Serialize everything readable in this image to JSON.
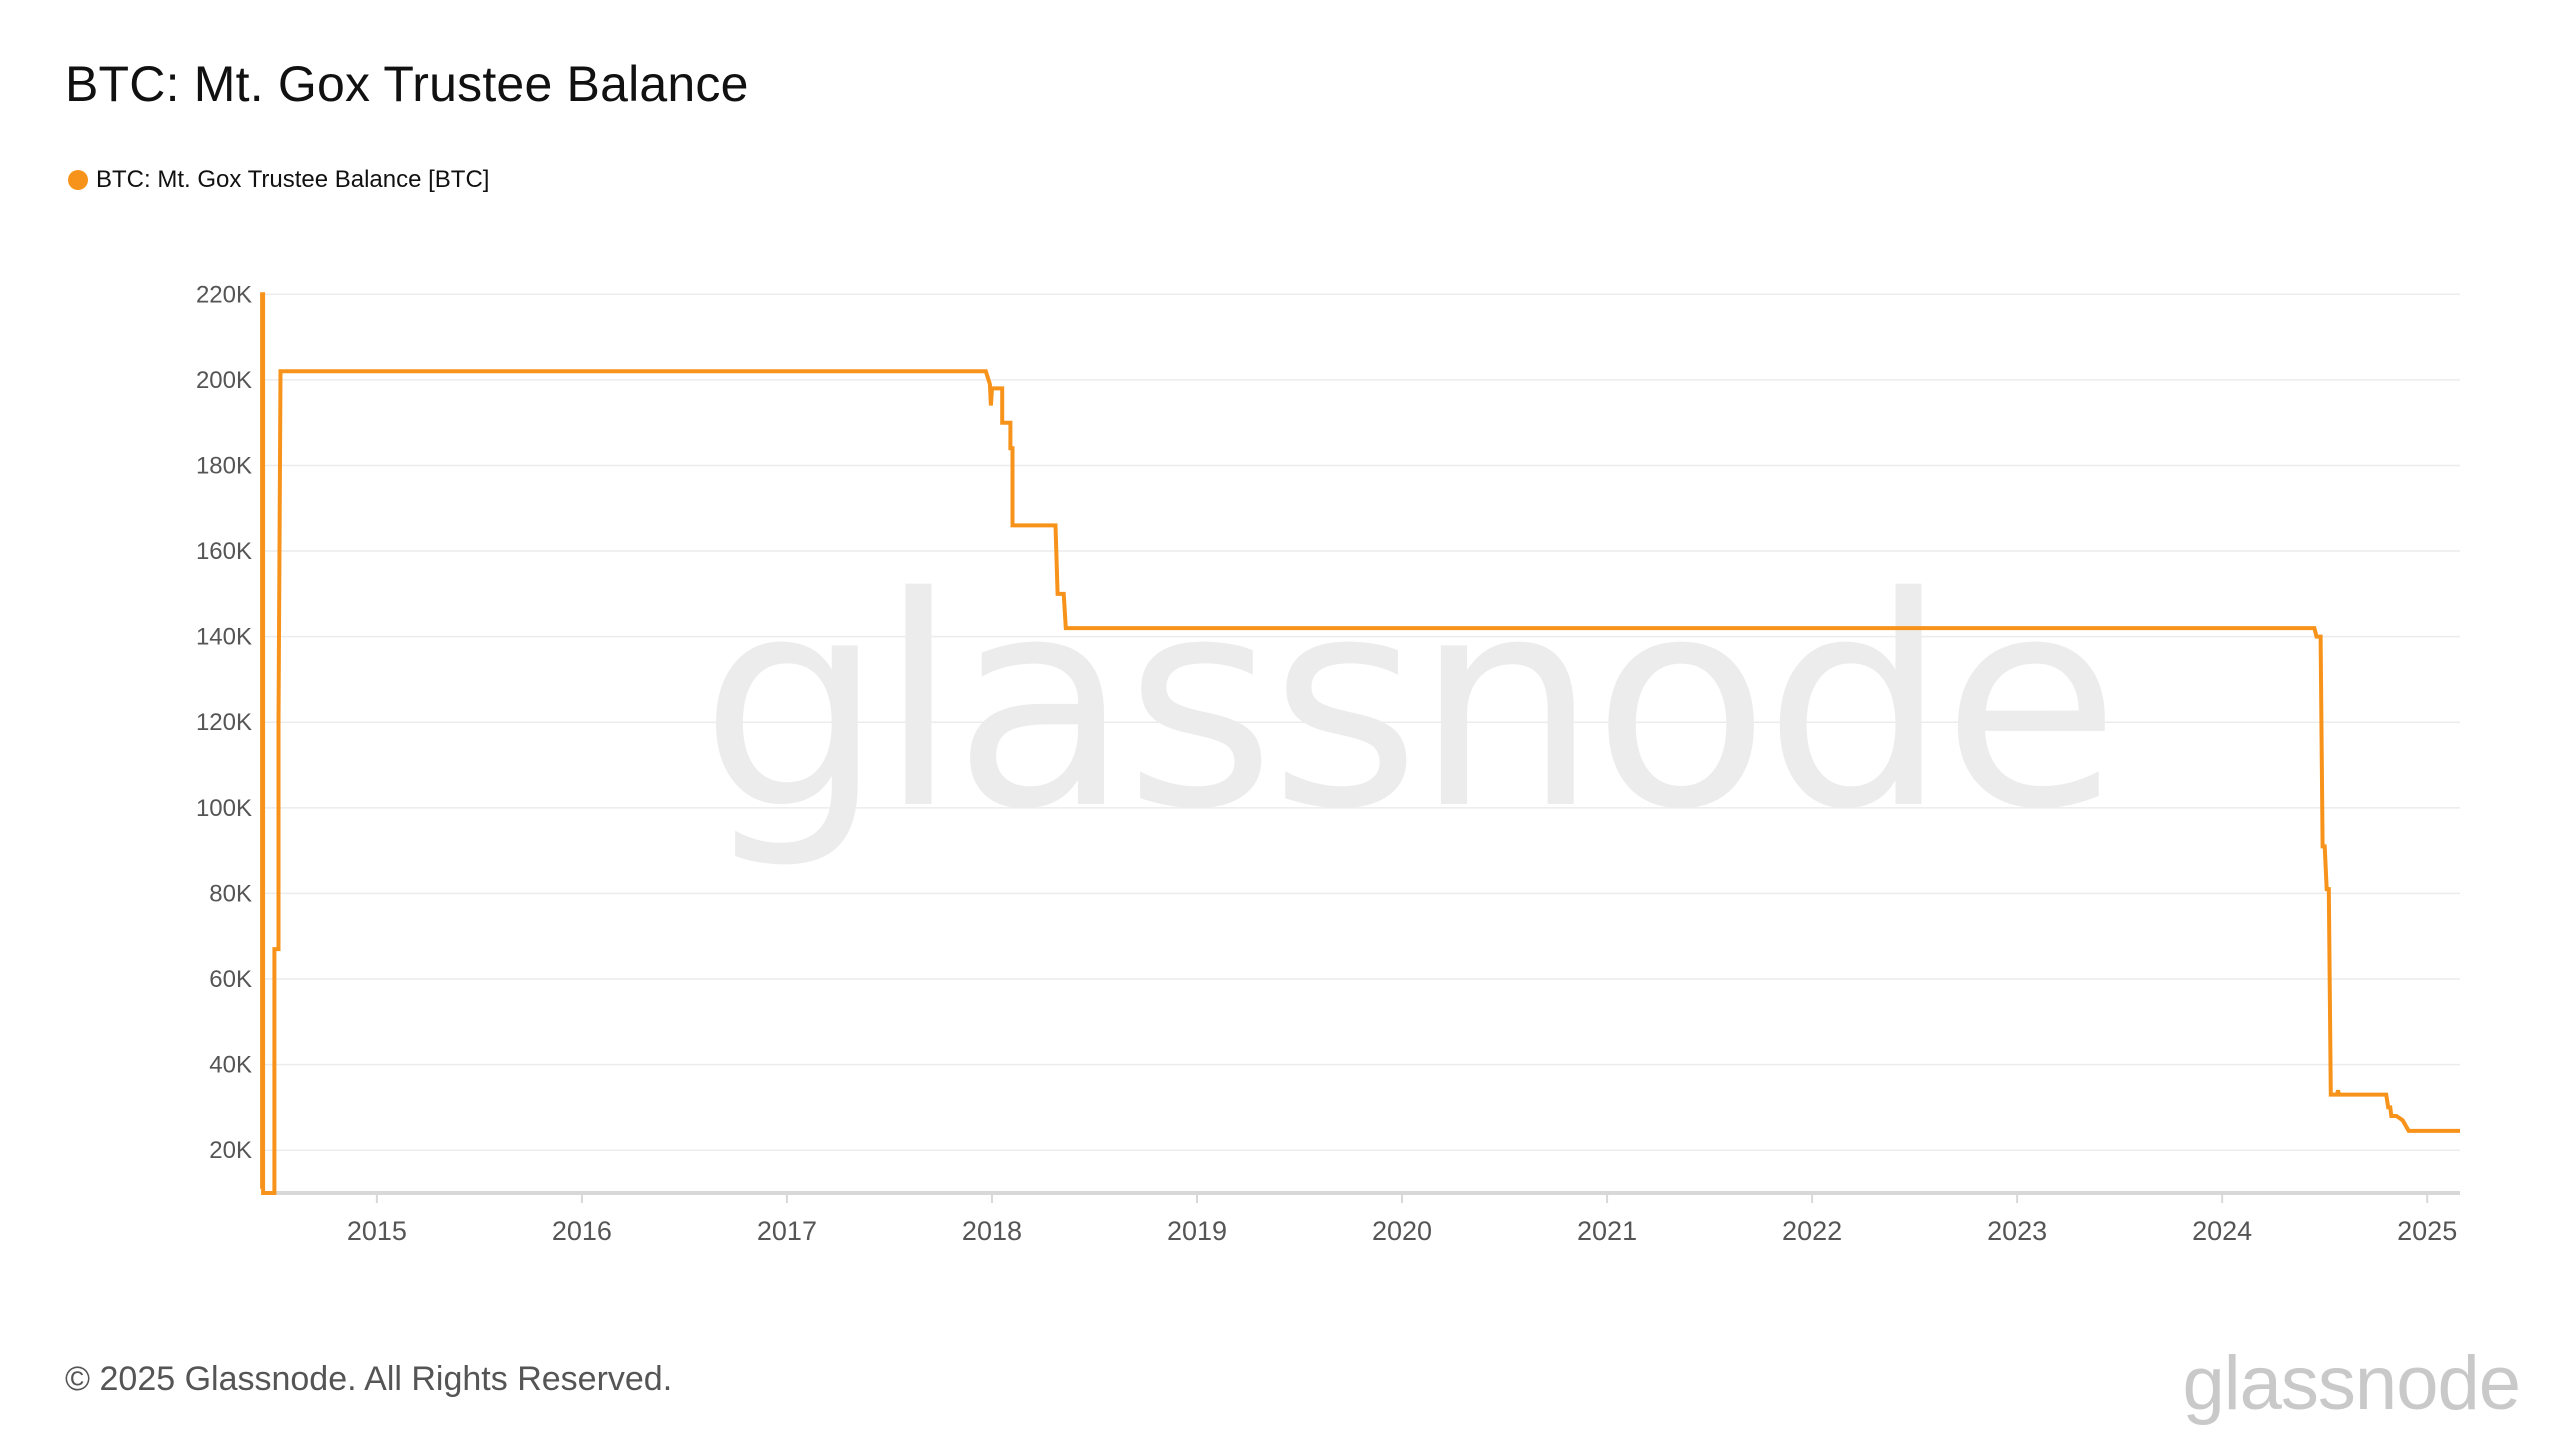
{
  "colors": {
    "series": "#f7931a",
    "grid": "#ececec",
    "axis": "#d8d8d8",
    "tick_text": "#555555"
  },
  "watermark": "glassnode",
  "footer": {
    "copyright": "© 2025 Glassnode. All Rights Reserved.",
    "logo": "glassnode"
  },
  "chart_data": {
    "type": "line",
    "title": "BTC: Mt. Gox Trustee Balance",
    "xlabel": "",
    "ylabel": "",
    "legend": {
      "placement": "top-left",
      "entries": [
        "BTC: Mt. Gox Trustee Balance [BTC]"
      ]
    },
    "grid": true,
    "ylim": [
      10000,
      221000
    ],
    "xlim": [
      2014.43,
      2025.16
    ],
    "y_ticks": [
      20000,
      40000,
      60000,
      80000,
      100000,
      120000,
      140000,
      160000,
      180000,
      200000,
      220000
    ],
    "y_tick_labels": [
      "20K",
      "40K",
      "60K",
      "80K",
      "100K",
      "120K",
      "140K",
      "160K",
      "180K",
      "200K",
      "220K"
    ],
    "x_ticks": [
      2015,
      2016,
      2017,
      2018,
      2019,
      2020,
      2021,
      2022,
      2023,
      2024,
      2025
    ],
    "x_tick_labels": [
      "2015",
      "2016",
      "2017",
      "2018",
      "2019",
      "2020",
      "2021",
      "2022",
      "2023",
      "2024",
      "2025"
    ],
    "series": [
      {
        "name": "BTC: Mt. Gox Trustee Balance [BTC]",
        "points": [
          [
            2014.44,
            11000
          ],
          [
            2014.44,
            220000
          ],
          [
            2014.445,
            220000
          ],
          [
            2014.445,
            10000
          ],
          [
            2014.5,
            10000
          ],
          [
            2014.5,
            67000
          ],
          [
            2014.52,
            67000
          ],
          [
            2014.52,
            120000
          ],
          [
            2014.53,
            202000
          ],
          [
            2017.97,
            202000
          ],
          [
            2017.99,
            199000
          ],
          [
            2017.995,
            194000
          ],
          [
            2018.0,
            198000
          ],
          [
            2018.05,
            198000
          ],
          [
            2018.05,
            190000
          ],
          [
            2018.09,
            190000
          ],
          [
            2018.09,
            184000
          ],
          [
            2018.1,
            184000
          ],
          [
            2018.1,
            166000
          ],
          [
            2018.31,
            166000
          ],
          [
            2018.32,
            150000
          ],
          [
            2018.35,
            150000
          ],
          [
            2018.36,
            142000
          ],
          [
            2024.45,
            142000
          ],
          [
            2024.46,
            140000
          ],
          [
            2024.48,
            140000
          ],
          [
            2024.49,
            91000
          ],
          [
            2024.5,
            91000
          ],
          [
            2024.51,
            81000
          ],
          [
            2024.52,
            81000
          ],
          [
            2024.53,
            33000
          ],
          [
            2024.56,
            33000
          ],
          [
            2024.565,
            34000
          ],
          [
            2024.57,
            33000
          ],
          [
            2024.8,
            33000
          ],
          [
            2024.81,
            30000
          ],
          [
            2024.82,
            30000
          ],
          [
            2024.825,
            28000
          ],
          [
            2024.85,
            28000
          ],
          [
            2024.88,
            27000
          ],
          [
            2024.91,
            24500
          ],
          [
            2025.16,
            24500
          ]
        ]
      }
    ]
  }
}
